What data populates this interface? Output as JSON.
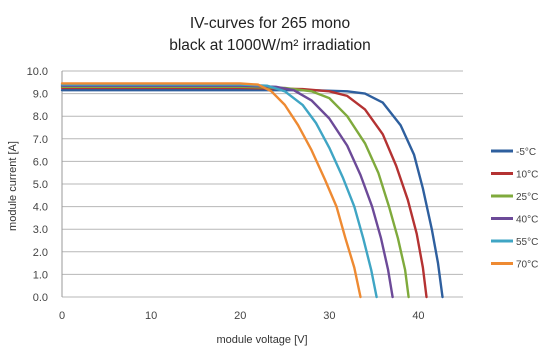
{
  "chart_data": {
    "type": "line",
    "title_line1": "IV-curves for 265 mono",
    "title_line2": "black at 1000W/m² irradiation",
    "xlabel": "module voltage [V]",
    "ylabel": "module current [A]",
    "xlim": [
      0,
      45
    ],
    "ylim": [
      0,
      10
    ],
    "x_ticks": [
      "0",
      "10",
      "20",
      "30",
      "40"
    ],
    "y_ticks": [
      "0.0",
      "1.0",
      "2.0",
      "3.0",
      "4.0",
      "5.0",
      "6.0",
      "7.0",
      "8.0",
      "9.0",
      "10.0"
    ],
    "grid": "horizontal",
    "legend_position": "right",
    "series": [
      {
        "name": "-5°C",
        "color": "#2e5f9e",
        "points": [
          [
            0,
            9.15
          ],
          [
            10,
            9.15
          ],
          [
            20,
            9.15
          ],
          [
            28,
            9.15
          ],
          [
            32,
            9.1
          ],
          [
            34,
            9.0
          ],
          [
            36,
            8.6
          ],
          [
            38,
            7.6
          ],
          [
            39.5,
            6.3
          ],
          [
            40.5,
            4.8
          ],
          [
            41.5,
            3.0
          ],
          [
            42.2,
            1.5
          ],
          [
            42.7,
            0
          ]
        ]
      },
      {
        "name": "10°C",
        "color": "#b43232",
        "points": [
          [
            0,
            9.25
          ],
          [
            10,
            9.25
          ],
          [
            20,
            9.25
          ],
          [
            27,
            9.2
          ],
          [
            30,
            9.1
          ],
          [
            32,
            8.9
          ],
          [
            34,
            8.3
          ],
          [
            36,
            7.2
          ],
          [
            37.5,
            5.8
          ],
          [
            38.8,
            4.3
          ],
          [
            39.8,
            2.8
          ],
          [
            40.5,
            1.3
          ],
          [
            40.9,
            0
          ]
        ]
      },
      {
        "name": "25°C",
        "color": "#7faa3c",
        "points": [
          [
            0,
            9.3
          ],
          [
            10,
            9.3
          ],
          [
            20,
            9.3
          ],
          [
            25,
            9.25
          ],
          [
            28,
            9.1
          ],
          [
            30,
            8.8
          ],
          [
            32,
            8.0
          ],
          [
            34,
            6.8
          ],
          [
            35.5,
            5.5
          ],
          [
            36.7,
            4.0
          ],
          [
            37.7,
            2.6
          ],
          [
            38.5,
            1.2
          ],
          [
            38.9,
            0
          ]
        ]
      },
      {
        "name": "40°C",
        "color": "#6c4a98",
        "points": [
          [
            0,
            9.35
          ],
          [
            10,
            9.35
          ],
          [
            20,
            9.35
          ],
          [
            24,
            9.3
          ],
          [
            26,
            9.15
          ],
          [
            28,
            8.7
          ],
          [
            30,
            7.9
          ],
          [
            32,
            6.7
          ],
          [
            33.5,
            5.4
          ],
          [
            34.8,
            4.0
          ],
          [
            35.8,
            2.6
          ],
          [
            36.6,
            1.2
          ],
          [
            37.1,
            0
          ]
        ]
      },
      {
        "name": "55°C",
        "color": "#3fa5c4",
        "points": [
          [
            0,
            9.4
          ],
          [
            10,
            9.4
          ],
          [
            20,
            9.4
          ],
          [
            23,
            9.35
          ],
          [
            25,
            9.1
          ],
          [
            27,
            8.5
          ],
          [
            28.5,
            7.7
          ],
          [
            30,
            6.6
          ],
          [
            31.5,
            5.3
          ],
          [
            32.8,
            4.0
          ],
          [
            33.8,
            2.6
          ],
          [
            34.7,
            1.2
          ],
          [
            35.3,
            0
          ]
        ]
      },
      {
        "name": "70°C",
        "color": "#ee8a32",
        "points": [
          [
            0,
            9.45
          ],
          [
            10,
            9.45
          ],
          [
            20,
            9.45
          ],
          [
            22,
            9.4
          ],
          [
            23.5,
            9.1
          ],
          [
            25,
            8.5
          ],
          [
            26.5,
            7.6
          ],
          [
            28,
            6.5
          ],
          [
            29.5,
            5.2
          ],
          [
            30.8,
            4.0
          ],
          [
            31.8,
            2.6
          ],
          [
            32.8,
            1.3
          ],
          [
            33.5,
            0
          ]
        ]
      }
    ]
  }
}
